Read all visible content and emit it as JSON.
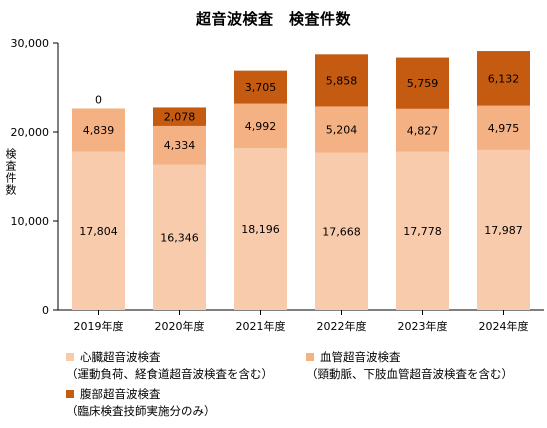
{
  "chart_data": {
    "type": "bar",
    "stacked": true,
    "title": "超音波検査　検査件数",
    "ylabel": "検査件数",
    "xlabel": "",
    "ylim": [
      0,
      30000
    ],
    "yticks": [
      "0",
      "10,000",
      "20,000",
      "30,000"
    ],
    "grid": false,
    "legend_position": "bottom",
    "categories": [
      "2019年度",
      "2020年度",
      "2021年度",
      "2022年度",
      "2023年度",
      "2024年度"
    ],
    "series": [
      {
        "name": "心臓超音波検査",
        "note": "（運動負荷、経食道超音波検査を含む）",
        "color": "#F8CBAD",
        "values": [
          17804,
          16346,
          18196,
          17668,
          17778,
          17987
        ],
        "labels": [
          "17,804",
          "16,346",
          "18,196",
          "17,668",
          "17,778",
          "17,987"
        ]
      },
      {
        "name": "血管超音波検査",
        "note": "（頸動脈、下肢血管超音波検査を含む）",
        "color": "#F4B183",
        "values": [
          4839,
          4334,
          4992,
          5204,
          4827,
          4975
        ],
        "labels": [
          "4,839",
          "4,334",
          "4,992",
          "5,204",
          "4,827",
          "4,975"
        ]
      },
      {
        "name": "腹部超音波検査",
        "note": "（臨床検査技師実施分のみ）",
        "color": "#C55A11",
        "values": [
          0,
          2078,
          3705,
          5858,
          5759,
          6132
        ],
        "labels": [
          "0",
          "2,078",
          "3,705",
          "5,858",
          "5,759",
          "6,132"
        ]
      }
    ]
  }
}
